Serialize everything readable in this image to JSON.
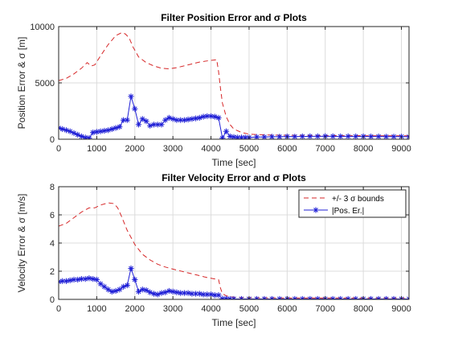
{
  "chart_data": [
    {
      "type": "line",
      "title": "Filter Position Error and σ Plots",
      "xlabel": "Time [sec]",
      "ylabel": "Position Error & σ [m]",
      "xlim": [
        0,
        9200
      ],
      "ylim": [
        0,
        10000
      ],
      "xticks": [
        0,
        1000,
        2000,
        3000,
        4000,
        5000,
        6000,
        7000,
        8000,
        9000
      ],
      "yticks": [
        0,
        5000,
        10000
      ],
      "ytick_labels": [
        "0",
        "5000",
        "10000"
      ],
      "grid": true,
      "series": [
        {
          "color": "#d62728",
          "style": "dashed",
          "marker": "none",
          "x": [
            0,
            200,
            400,
            600,
            750,
            850,
            950,
            1100,
            1300,
            1500,
            1650,
            1750,
            1850,
            1950,
            2100,
            2300,
            2500,
            2700,
            2900,
            3100,
            3400,
            3700,
            4000,
            4150,
            4200,
            4250,
            4300,
            4400,
            4500,
            4600,
            4800,
            5000,
            5500,
            6000,
            7000,
            8000,
            9200
          ],
          "y": [
            5200,
            5400,
            5800,
            6300,
            6800,
            6500,
            6600,
            7400,
            8400,
            9200,
            9450,
            9350,
            9000,
            8200,
            7300,
            6800,
            6500,
            6300,
            6250,
            6350,
            6600,
            6850,
            7000,
            7050,
            6000,
            4500,
            3200,
            2000,
            1300,
            900,
            600,
            450,
            380,
            350,
            320,
            310,
            300
          ]
        },
        {
          "color": "#1f1fd6",
          "style": "solid",
          "marker": "*",
          "x": [
            0,
            100,
            200,
            300,
            400,
            500,
            600,
            700,
            800,
            900,
            1000,
            1100,
            1200,
            1300,
            1400,
            1500,
            1600,
            1700,
            1800,
            1900,
            2000,
            2100,
            2200,
            2300,
            2400,
            2500,
            2600,
            2700,
            2800,
            2900,
            3000,
            3100,
            3200,
            3300,
            3400,
            3500,
            3600,
            3700,
            3800,
            3900,
            4000,
            4100,
            4200,
            4300,
            4400,
            4500,
            4600,
            4700,
            4800,
            4900,
            5000,
            5200,
            5400,
            5600,
            5800,
            6000,
            6200,
            6400,
            6600,
            6800,
            7000,
            7200,
            7400,
            7600,
            7800,
            8000,
            8200,
            8400,
            8600,
            8800,
            9000,
            9200
          ],
          "y": [
            1000,
            900,
            800,
            700,
            550,
            400,
            250,
            150,
            100,
            600,
            650,
            700,
            750,
            800,
            900,
            1000,
            1100,
            1700,
            1700,
            3800,
            2700,
            1300,
            1800,
            1600,
            1200,
            1300,
            1300,
            1300,
            1700,
            1900,
            1800,
            1700,
            1700,
            1700,
            1750,
            1800,
            1850,
            1900,
            2000,
            2050,
            2050,
            2000,
            1900,
            100,
            700,
            250,
            200,
            150,
            150,
            150,
            150,
            200,
            200,
            220,
            220,
            240,
            230,
            250,
            260,
            260,
            270,
            260,
            250,
            260,
            250,
            250,
            240,
            240,
            230,
            230,
            230,
            220
          ]
        }
      ]
    },
    {
      "type": "line",
      "title": "Filter Velocity Error and σ Plots",
      "xlabel": "Time [sec]",
      "ylabel": "Velocity Error & σ [m/s]",
      "xlim": [
        0,
        9200
      ],
      "ylim": [
        0,
        8
      ],
      "xticks": [
        0,
        1000,
        2000,
        3000,
        4000,
        5000,
        6000,
        7000,
        8000,
        9000
      ],
      "yticks": [
        0,
        2,
        4,
        6,
        8
      ],
      "ytick_labels": [
        "0",
        "2",
        "4",
        "6",
        "8"
      ],
      "grid": true,
      "legend": {
        "placement": "top-right",
        "entries": [
          "+/- 3 σ bounds",
          "|Pos. Er.|"
        ]
      },
      "series": [
        {
          "name": "+/- 3 σ bounds",
          "color": "#d62728",
          "style": "dashed",
          "marker": "none",
          "x": [
            0,
            200,
            400,
            600,
            800,
            950,
            1100,
            1300,
            1450,
            1550,
            1650,
            1800,
            2000,
            2200,
            2400,
            2600,
            2800,
            3000,
            3300,
            3600,
            3900,
            4100,
            4200,
            4250,
            4300,
            4400,
            4600,
            5000,
            6000,
            7000,
            8000,
            9200
          ],
          "y": [
            5.2,
            5.4,
            5.8,
            6.2,
            6.5,
            6.5,
            6.7,
            6.85,
            6.8,
            6.5,
            5.9,
            4.9,
            3.9,
            3.2,
            2.8,
            2.5,
            2.3,
            2.15,
            1.95,
            1.75,
            1.55,
            1.45,
            1.4,
            0.8,
            0.4,
            0.25,
            0.15,
            0.12,
            0.1,
            0.1,
            0.1,
            0.1
          ]
        },
        {
          "name": "|Pos. Er.|",
          "color": "#1f1fd6",
          "style": "solid",
          "marker": "*",
          "x": [
            0,
            100,
            200,
            300,
            400,
            500,
            600,
            700,
            800,
            900,
            1000,
            1100,
            1200,
            1300,
            1400,
            1500,
            1600,
            1700,
            1800,
            1900,
            2000,
            2100,
            2200,
            2300,
            2400,
            2500,
            2600,
            2700,
            2800,
            2900,
            3000,
            3100,
            3200,
            3300,
            3400,
            3500,
            3600,
            3700,
            3800,
            3900,
            4000,
            4100,
            4200,
            4300,
            4400,
            4500,
            4600,
            4800,
            5000,
            5200,
            5400,
            5600,
            5800,
            6000,
            6200,
            6400,
            6600,
            6800,
            7000,
            7200,
            7400,
            7600,
            7800,
            8000,
            8200,
            8400,
            8600,
            8800,
            9000,
            9200
          ],
          "y": [
            1.25,
            1.3,
            1.3,
            1.35,
            1.4,
            1.4,
            1.45,
            1.45,
            1.5,
            1.45,
            1.4,
            1.1,
            0.9,
            0.7,
            0.55,
            0.6,
            0.7,
            0.9,
            1.0,
            2.2,
            1.4,
            0.55,
            0.7,
            0.65,
            0.5,
            0.4,
            0.35,
            0.45,
            0.5,
            0.6,
            0.55,
            0.5,
            0.45,
            0.45,
            0.45,
            0.4,
            0.4,
            0.4,
            0.35,
            0.35,
            0.35,
            0.3,
            0.3,
            0.05,
            0.05,
            0.03,
            0.03,
            0.03,
            0.03,
            0.03,
            0.03,
            0.03,
            0.03,
            0.03,
            0.03,
            0.03,
            0.03,
            0.03,
            0.03,
            0.03,
            0.03,
            0.03,
            0.03,
            0.03,
            0.03,
            0.03,
            0.03,
            0.03,
            0.03,
            0.03
          ]
        }
      ]
    }
  ]
}
